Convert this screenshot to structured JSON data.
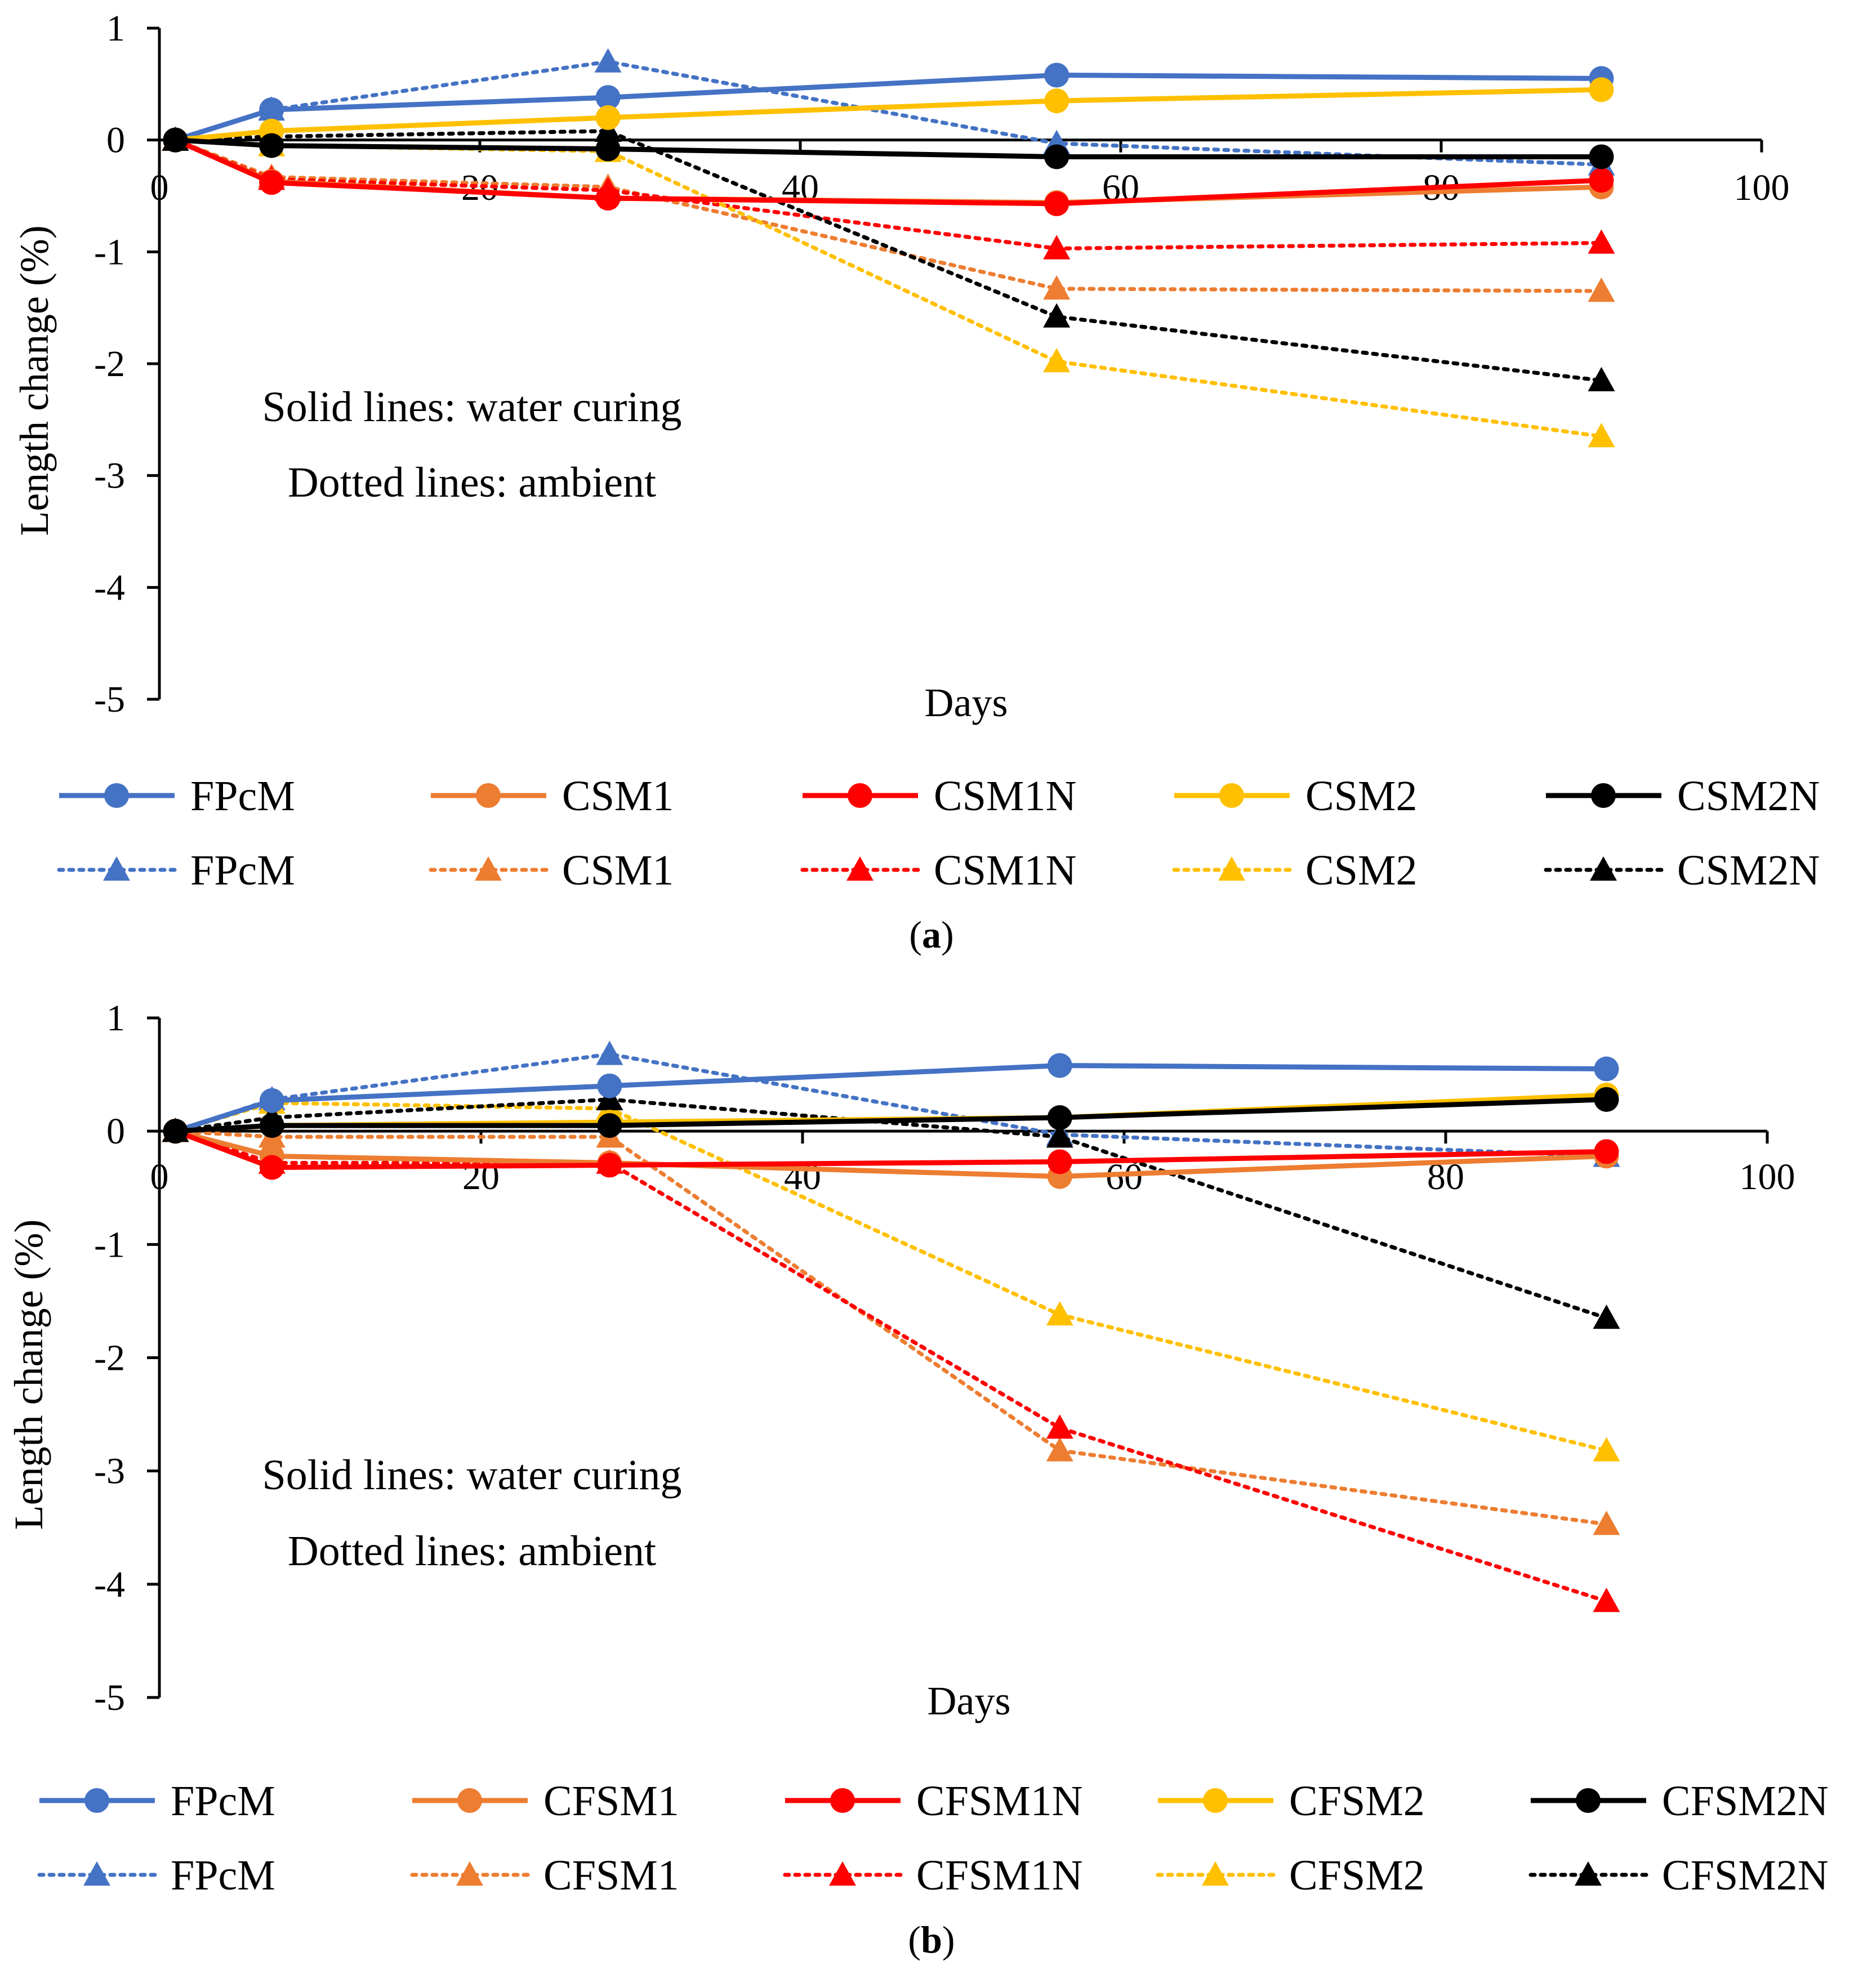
{
  "chart_data": [
    {
      "type": "line",
      "panel": "a",
      "caption_letter": "a",
      "title": "",
      "xlabel": "Days",
      "ylabel": "Length change (%)",
      "xlim": [
        0,
        100
      ],
      "ylim": [
        -5,
        1
      ],
      "x_ticks": [
        "0",
        "20",
        "40",
        "60",
        "80",
        "100"
      ],
      "y_ticks": [
        "1",
        "0",
        "-1",
        "-2",
        "-3",
        "-4",
        "-5"
      ],
      "x": [
        1,
        7,
        28,
        56,
        90
      ],
      "annotations": [
        "Solid lines: water curing",
        "Dotted lines: ambient"
      ],
      "series": [
        {
          "name": "FPcM",
          "color": "#4472C4",
          "curing": "water",
          "line": "solid",
          "marker": "circle",
          "values": [
            0,
            0.27,
            0.38,
            0.58,
            0.55
          ]
        },
        {
          "name": "CSM1",
          "color": "#ED7D31",
          "curing": "water",
          "line": "solid",
          "marker": "circle",
          "values": [
            0,
            -0.37,
            -0.52,
            -0.56,
            -0.42
          ]
        },
        {
          "name": "CSM1N",
          "color": "#FF0000",
          "curing": "water",
          "line": "solid",
          "marker": "circle",
          "values": [
            0,
            -0.38,
            -0.52,
            -0.57,
            -0.36
          ]
        },
        {
          "name": "CSM2",
          "color": "#FFC000",
          "curing": "water",
          "line": "solid",
          "marker": "circle",
          "values": [
            0,
            0.08,
            0.2,
            0.35,
            0.45
          ]
        },
        {
          "name": "CSM2N",
          "color": "#000000",
          "curing": "water",
          "line": "solid",
          "marker": "circle",
          "values": [
            0,
            -0.05,
            -0.08,
            -0.15,
            -0.15
          ]
        },
        {
          "name": "FPcM",
          "color": "#4472C4",
          "curing": "ambient",
          "line": "dotted",
          "marker": "triangle",
          "values": [
            0,
            0.27,
            0.7,
            -0.03,
            -0.22
          ]
        },
        {
          "name": "CSM1",
          "color": "#ED7D31",
          "curing": "ambient",
          "line": "dotted",
          "marker": "triangle",
          "values": [
            0,
            -0.33,
            -0.42,
            -1.33,
            -1.35
          ]
        },
        {
          "name": "CSM1N",
          "color": "#FF0000",
          "curing": "ambient",
          "line": "dotted",
          "marker": "triangle",
          "values": [
            0,
            -0.35,
            -0.45,
            -0.97,
            -0.92
          ]
        },
        {
          "name": "CSM2",
          "color": "#FFC000",
          "curing": "ambient",
          "line": "dotted",
          "marker": "triangle",
          "values": [
            0,
            -0.05,
            -0.1,
            -1.98,
            -2.65
          ]
        },
        {
          "name": "CSM2N",
          "color": "#000000",
          "curing": "ambient",
          "line": "dotted",
          "marker": "triangle",
          "values": [
            0,
            0.03,
            0.08,
            -1.58,
            -2.15
          ]
        }
      ]
    },
    {
      "type": "line",
      "panel": "b",
      "caption_letter": "b",
      "title": "",
      "xlabel": "Days",
      "ylabel": "Length change (%)",
      "xlim": [
        0,
        100
      ],
      "ylim": [
        -5,
        1
      ],
      "x_ticks": [
        "0",
        "20",
        "40",
        "60",
        "80",
        "100"
      ],
      "y_ticks": [
        "1",
        "0",
        "-1",
        "-2",
        "-3",
        "-4",
        "-5"
      ],
      "x": [
        1,
        7,
        28,
        56,
        90
      ],
      "annotations": [
        "Solid lines: water curing",
        "Dotted lines: ambient"
      ],
      "series": [
        {
          "name": "FPcM",
          "color": "#4472C4",
          "curing": "water",
          "line": "solid",
          "marker": "circle",
          "values": [
            0,
            0.27,
            0.4,
            0.58,
            0.55
          ]
        },
        {
          "name": "CFSM1",
          "color": "#ED7D31",
          "curing": "water",
          "line": "solid",
          "marker": "circle",
          "values": [
            0,
            -0.22,
            -0.28,
            -0.4,
            -0.22
          ]
        },
        {
          "name": "CFSM1N",
          "color": "#FF0000",
          "curing": "water",
          "line": "solid",
          "marker": "circle",
          "values": [
            0,
            -0.32,
            -0.3,
            -0.27,
            -0.18
          ]
        },
        {
          "name": "CFSM2",
          "color": "#FFC000",
          "curing": "water",
          "line": "solid",
          "marker": "circle",
          "values": [
            0,
            0.05,
            0.08,
            0.12,
            0.32
          ]
        },
        {
          "name": "CFSM2N",
          "color": "#000000",
          "curing": "water",
          "line": "solid",
          "marker": "circle",
          "values": [
            0,
            0.05,
            0.05,
            0.12,
            0.28
          ]
        },
        {
          "name": "FPcM",
          "color": "#4472C4",
          "curing": "ambient",
          "line": "dotted",
          "marker": "triangle",
          "values": [
            0,
            0.28,
            0.68,
            -0.03,
            -0.22
          ]
        },
        {
          "name": "CFSM1",
          "color": "#ED7D31",
          "curing": "ambient",
          "line": "dotted",
          "marker": "triangle",
          "values": [
            0,
            -0.05,
            -0.05,
            -2.82,
            -3.47
          ]
        },
        {
          "name": "CFSM1N",
          "color": "#FF0000",
          "curing": "ambient",
          "line": "dotted",
          "marker": "triangle",
          "values": [
            0,
            -0.28,
            -0.28,
            -2.62,
            -4.15
          ]
        },
        {
          "name": "CFSM2",
          "color": "#FFC000",
          "curing": "ambient",
          "line": "dotted",
          "marker": "triangle",
          "values": [
            0,
            0.25,
            0.2,
            -1.62,
            -2.82
          ]
        },
        {
          "name": "CFSM2N",
          "color": "#000000",
          "curing": "ambient",
          "line": "dotted",
          "marker": "triangle",
          "values": [
            0,
            0.12,
            0.28,
            -0.05,
            -1.65
          ]
        }
      ]
    }
  ]
}
